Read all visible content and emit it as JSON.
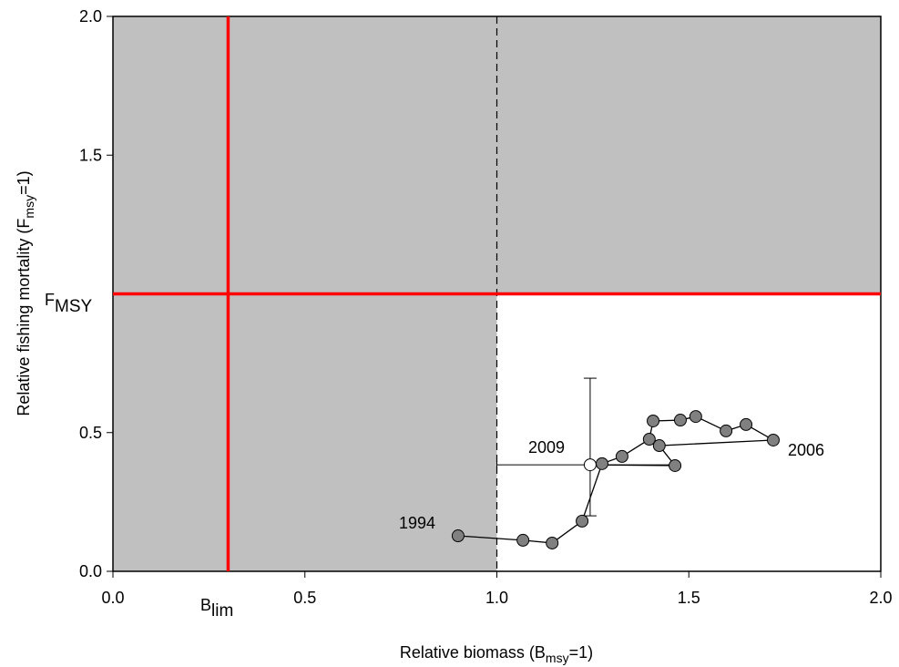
{
  "chart_data": {
    "type": "scatter",
    "x_label": {
      "text": "Relative biomass (B",
      "sub": "msy",
      "end": "=1)"
    },
    "y_label": {
      "text": "Relative fishing mortality (F",
      "sub": "msy",
      "end": "=1)"
    },
    "x": [
      0.899,
      1.068,
      1.144,
      1.222,
      1.274,
      1.326,
      1.397,
      1.407,
      1.478,
      1.518,
      1.597,
      1.649,
      1.72,
      1.423,
      1.464,
      1.243
    ],
    "values": [
      0.128,
      0.112,
      0.102,
      0.181,
      0.388,
      0.414,
      0.476,
      0.542,
      0.545,
      0.558,
      0.506,
      0.529,
      0.473,
      0.453,
      0.381,
      0.384
    ],
    "color": "#808080",
    "last_color": "#ffffff",
    "error_x": [
      1.0,
      1.464
    ],
    "error_y": [
      0.2,
      0.696
    ],
    "annotations": [
      "1994",
      "2006",
      "2009"
    ],
    "reference_lines": {
      "blim": 0.3,
      "fmsy": 1.0,
      "bmsy": 1.0,
      "color": "#ff0000"
    },
    "blim_label": {
      "text": "B",
      "sub": "lim"
    },
    "fmsy_label": {
      "text": "F",
      "sub": "MSY"
    },
    "shade_color": "#c0c0c0",
    "xlim": [
      0,
      2
    ],
    "ylim": [
      0,
      2
    ],
    "xticks": [
      {
        "value": 0,
        "label": "0.0"
      },
      {
        "value": 0.5,
        "label": "0.5"
      },
      {
        "value": 1,
        "label": "1.0"
      },
      {
        "value": 1.5,
        "label": "1.5"
      },
      {
        "value": 2,
        "label": "2.0"
      }
    ],
    "yticks": [
      {
        "value": 0,
        "label": "0.0"
      },
      {
        "value": 0.5,
        "label": "0.5"
      },
      {
        "value": 1.5,
        "label": "1.5"
      },
      {
        "value": 2,
        "label": "2.0"
      }
    ]
  }
}
